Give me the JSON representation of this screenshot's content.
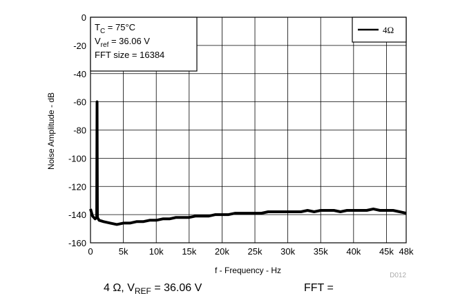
{
  "chart_data": {
    "type": "line",
    "x": [
      0,
      300,
      700,
      950,
      1000,
      1050,
      1300,
      2000,
      3000,
      4000,
      5000,
      6000,
      7000,
      8000,
      9000,
      10000,
      11000,
      12000,
      13000,
      14000,
      15000,
      16000,
      17000,
      18000,
      19000,
      20000,
      21000,
      22000,
      23000,
      24000,
      25000,
      26000,
      27000,
      28000,
      29000,
      30000,
      31000,
      32000,
      33000,
      34000,
      35000,
      36000,
      37000,
      38000,
      39000,
      40000,
      41000,
      42000,
      43000,
      44000,
      45000,
      46000,
      47000,
      48000
    ],
    "series": [
      {
        "name": "4Ω",
        "color": "#000000",
        "values": [
          -136,
          -141,
          -143,
          -142,
          -60,
          -142,
          -144,
          -145,
          -146,
          -147,
          -146,
          -146,
          -145,
          -145,
          -144,
          -144,
          -143,
          -143,
          -142,
          -142,
          -142,
          -141,
          -141,
          -141,
          -140,
          -140,
          -140,
          -139,
          -139,
          -139,
          -139,
          -139,
          -138,
          -138,
          -138,
          -138,
          -138,
          -138,
          -137,
          -138,
          -137,
          -137,
          -137,
          -138,
          -137,
          -137,
          -137,
          -137,
          -136,
          -137,
          -137,
          -137,
          -138,
          -139
        ]
      }
    ],
    "xlim": [
      0,
      48000
    ],
    "xticks": [
      0,
      {
        "value": 5000,
        "label": "5k"
      },
      {
        "value": 10000,
        "label": "10k"
      },
      {
        "value": 15000,
        "label": "15k"
      },
      {
        "value": 20000,
        "label": "20k"
      },
      {
        "value": 25000,
        "label": "25k"
      },
      {
        "value": 30000,
        "label": "30k"
      },
      {
        "value": 35000,
        "label": "35k"
      },
      {
        "value": 40000,
        "label": "40k"
      },
      {
        "value": 45000,
        "label": "45k"
      },
      {
        "value": 48000,
        "label": "48k"
      }
    ],
    "ylim": [
      -160,
      0
    ],
    "yticks": [
      -160,
      -140,
      -120,
      -100,
      -80,
      -60,
      -40,
      -20,
      0
    ],
    "grid": true,
    "legend": "top-right",
    "x_label": "f - Frequency - Hz",
    "y_label": "Noise Amplitude - dB",
    "annotations": [
      {
        "main": "T",
        "sub": "C",
        "rest": " = 75°C"
      },
      {
        "main": "V",
        "sub": "ref",
        "rest": " = 36.06 V"
      },
      {
        "main": "FFT size = 16384",
        "sub": "",
        "rest": ""
      }
    ],
    "figure_id": "D012",
    "caption": {
      "main": "4 Ω, V",
      "sub": "REF",
      "rest": " = 36.06 V",
      "right": "FFT ="
    }
  }
}
